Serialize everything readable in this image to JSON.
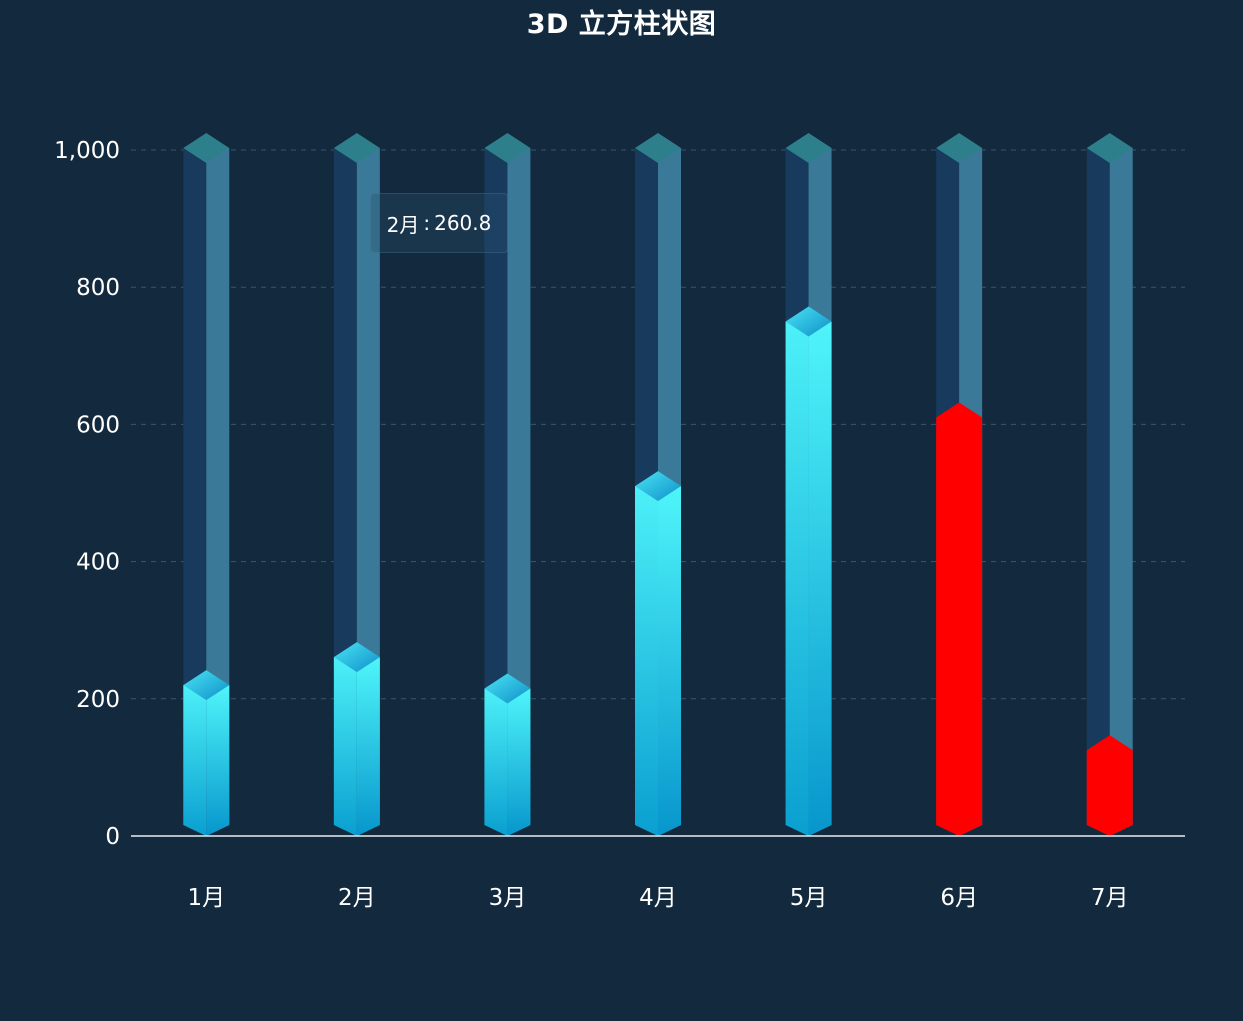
{
  "chart_data": {
    "type": "bar",
    "title": "3D 立方柱状图",
    "categories": [
      "1月",
      "2月",
      "3月",
      "4月",
      "5月",
      "6月",
      "7月"
    ],
    "values": [
      220,
      260.8,
      215,
      510,
      750,
      610,
      125
    ],
    "background_values": [
      1000,
      1000,
      1000,
      1000,
      1000,
      1000,
      1000
    ],
    "ylim": [
      0,
      1000
    ],
    "yticks": [
      "0",
      "200",
      "400",
      "600",
      "800",
      "1,000"
    ],
    "ytick_values": [
      0,
      200,
      400,
      600,
      800,
      1000
    ],
    "xlabel": "",
    "ylabel": "",
    "grid": true,
    "highlight_indices": [
      5,
      6
    ],
    "colors": {
      "background": "#13293d",
      "bar_top": "#4ff5fa",
      "bar_bottom": "#0796cc",
      "bar_cap": "#1fb5e0",
      "highlight": "#ff0000",
      "track_left": "#183a5c",
      "track_right": "#3a7a98",
      "track_cap": "#2e7f8c",
      "grid": "#3a5570",
      "axis": "#e8eef2"
    }
  },
  "tooltip": {
    "category": "2月",
    "separator": ":",
    "value": "260.8"
  }
}
